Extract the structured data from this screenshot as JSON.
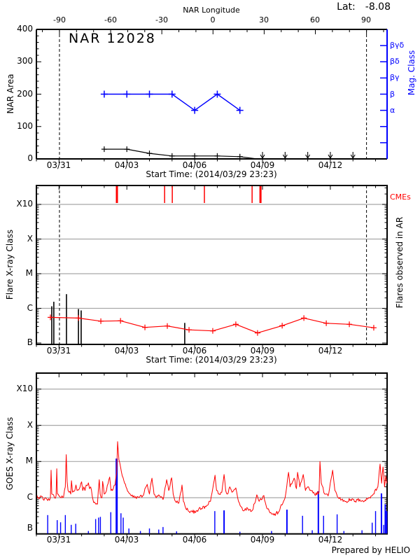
{
  "figure": {
    "title": "NAR 12028",
    "latitude_label": "Lat:",
    "latitude_value": "-8.08",
    "credit": "Prepared by HELIO"
  },
  "colors": {
    "data_red": "#ff0000",
    "data_blue": "#0000ff",
    "data_black": "#000000",
    "gridline_gray": "#a8a8a8",
    "background": "#ffffff"
  },
  "time_axis": {
    "title": "Start Time: (2014/03/29 23:23)",
    "tick_labels": [
      "03/31",
      "04/03",
      "04/06",
      "04/09",
      "04/12"
    ],
    "tick_days": [
      1,
      4,
      7,
      10,
      13
    ],
    "minor_step_days": 1,
    "day_min": 0,
    "day_max": 15.51
  },
  "longitude_axis": {
    "title": "NAR Longitude",
    "tick_labels": [
      "-90",
      "-60",
      "-30",
      "0",
      "30",
      "60",
      "90"
    ],
    "tick_values": [
      -90,
      -60,
      -30,
      0,
      30,
      60,
      90
    ],
    "minor_step_deg": 10,
    "west_limb_day": 1.02,
    "east_limb_day": 14.6,
    "deg_span": 180
  },
  "chart_data": [
    {
      "type": "line",
      "name": "nar-area-and-mag-class",
      "title": "NAR 12028",
      "ylabel": "NAR Area",
      "ylim": [
        0,
        400
      ],
      "ytick_labels": [
        "0",
        "100",
        "200",
        "300",
        "400"
      ],
      "yticks": [
        0,
        100,
        200,
        300,
        400
      ],
      "y_minor_step": 20,
      "y2label": "Mag. Class",
      "y2_tick_areas": [
        50,
        100,
        150,
        200,
        250,
        300,
        350
      ],
      "y2_labeled": [
        {
          "area": 350,
          "label": "βγδ"
        },
        {
          "area": 300,
          "label": "βδ"
        },
        {
          "area": 250,
          "label": "βγ"
        },
        {
          "area": 200,
          "label": "β"
        },
        {
          "area": 150,
          "label": "α"
        }
      ],
      "area_series": {
        "color": "black",
        "marker": "+",
        "days": [
          3,
          4,
          5,
          6,
          7,
          8,
          9
        ],
        "values": [
          30,
          30,
          17,
          9,
          9,
          9,
          7
        ],
        "tail": [
          [
            9,
            7
          ],
          [
            9.75,
            0
          ]
        ]
      },
      "mag_series": {
        "color": "blue",
        "marker": "+",
        "days": [
          3,
          4,
          5,
          6,
          7,
          8,
          9
        ],
        "classes": [
          "β",
          "β",
          "β",
          "β",
          "α",
          "β",
          "α"
        ],
        "area_equiv": [
          200,
          200,
          200,
          200,
          150,
          200,
          150
        ]
      },
      "zero_upper_limit_arrow_days": [
        10,
        11,
        12,
        13,
        14
      ],
      "limb_lines_days": [
        1.02,
        14.6
      ]
    },
    {
      "type": "line",
      "name": "flares-observed-in-ar",
      "ylabel": "Flare X-ray Class",
      "right_label": "Flares observed in AR",
      "cme_label": "CMEs",
      "decade_labels": [
        "B",
        "C",
        "M",
        "X",
        "X10"
      ],
      "level_unit": "decades above B (1e-7 W/m^2)",
      "gray_lines_levels": [
        1,
        2,
        3,
        4
      ],
      "flare_line": {
        "color": "red",
        "marker": "+",
        "days": [
          0.62,
          1.86,
          2.85,
          3.72,
          4.8,
          5.79,
          6.75,
          7.8,
          8.82,
          9.78,
          10.87,
          11.83,
          12.82,
          13.84,
          14.92
        ],
        "levels": [
          0.74,
          0.72,
          0.63,
          0.64,
          0.45,
          0.49,
          0.38,
          0.35,
          0.54,
          0.29,
          0.5,
          0.72,
          0.57,
          0.54,
          0.44
        ]
      },
      "black_flare_spikes": [
        [
          0.68,
          1.06
        ],
        [
          0.77,
          1.19
        ],
        [
          1.33,
          1.41
        ],
        [
          1.86,
          0.98
        ],
        [
          1.98,
          0.94
        ],
        [
          6.56,
          0.58
        ]
      ],
      "cme_ticks": [
        [
          3.56,
          3
        ],
        [
          5.67,
          1.5
        ],
        [
          6.01,
          1.5
        ],
        [
          7.43,
          1.5
        ],
        [
          9.54,
          1.5
        ],
        [
          9.91,
          3
        ]
      ],
      "limb_lines_days": [
        1.02,
        14.6
      ]
    },
    {
      "type": "line",
      "name": "goes-xray-flux",
      "ylabel": "GOES X-ray Class",
      "decade_labels": [
        "B",
        "C",
        "M",
        "X",
        "X10"
      ],
      "level_unit": "decades above B (1e-7 W/m^2)",
      "gray_lines_levels": [
        1,
        2,
        3,
        4
      ],
      "noise_amplitude": 0.05,
      "goes_red": [
        [
          0.03,
          1.06
        ],
        [
          0.1,
          1.0
        ],
        [
          0.2,
          1.05
        ],
        [
          0.3,
          0.95
        ],
        [
          0.4,
          1.0
        ],
        [
          0.5,
          0.92
        ],
        [
          0.62,
          1.0
        ],
        [
          0.65,
          1.76
        ],
        [
          0.68,
          1.1
        ],
        [
          0.8,
          1.0
        ],
        [
          0.87,
          1.05
        ],
        [
          0.9,
          1.8
        ],
        [
          0.93,
          1.1
        ],
        [
          1.0,
          1.05
        ],
        [
          1.1,
          1.0
        ],
        [
          1.2,
          1.02
        ],
        [
          1.28,
          1.3
        ],
        [
          1.32,
          2.19
        ],
        [
          1.36,
          1.45
        ],
        [
          1.4,
          1.2
        ],
        [
          1.45,
          1.15
        ],
        [
          1.52,
          1.1
        ],
        [
          1.55,
          1.47
        ],
        [
          1.6,
          1.15
        ],
        [
          1.7,
          1.2
        ],
        [
          1.75,
          1.35
        ],
        [
          1.8,
          1.2
        ],
        [
          1.9,
          1.25
        ],
        [
          2.0,
          1.44
        ],
        [
          2.05,
          1.2
        ],
        [
          2.1,
          1.3
        ],
        [
          2.15,
          1.2
        ],
        [
          2.2,
          1.35
        ],
        [
          2.3,
          1.41
        ],
        [
          2.35,
          1.25
        ],
        [
          2.4,
          1.3
        ],
        [
          2.5,
          0.95
        ],
        [
          2.6,
          0.85
        ],
        [
          2.7,
          0.82
        ],
        [
          2.78,
          1.5
        ],
        [
          2.82,
          1.1
        ],
        [
          2.9,
          1.0
        ],
        [
          2.93,
          1.45
        ],
        [
          3.0,
          1.1
        ],
        [
          3.1,
          1.2
        ],
        [
          3.24,
          1.57
        ],
        [
          3.3,
          1.2
        ],
        [
          3.4,
          1.25
        ],
        [
          3.48,
          1.35
        ],
        [
          3.55,
          1.7
        ],
        [
          3.59,
          2.55
        ],
        [
          3.65,
          2.05
        ],
        [
          3.72,
          1.85
        ],
        [
          3.8,
          1.6
        ],
        [
          3.9,
          1.4
        ],
        [
          4.0,
          1.25
        ],
        [
          4.1,
          1.12
        ],
        [
          4.2,
          1.05
        ],
        [
          4.35,
          1.0
        ],
        [
          4.5,
          1.02
        ],
        [
          4.7,
          1.05
        ],
        [
          4.9,
          1.37
        ],
        [
          5.0,
          1.1
        ],
        [
          5.11,
          1.54
        ],
        [
          5.2,
          1.1
        ],
        [
          5.3,
          1.0
        ],
        [
          5.45,
          1.05
        ],
        [
          5.6,
          0.95
        ],
        [
          5.76,
          1.5
        ],
        [
          5.85,
          1.2
        ],
        [
          5.98,
          1.55
        ],
        [
          6.05,
          1.1
        ],
        [
          6.15,
          0.9
        ],
        [
          6.3,
          0.85
        ],
        [
          6.44,
          1.35
        ],
        [
          6.5,
          0.9
        ],
        [
          6.6,
          0.72
        ],
        [
          6.75,
          0.62
        ],
        [
          6.9,
          0.6
        ],
        [
          7.1,
          0.65
        ],
        [
          7.3,
          0.7
        ],
        [
          7.5,
          0.75
        ],
        [
          7.7,
          0.9
        ],
        [
          7.9,
          1.62
        ],
        [
          7.97,
          1.2
        ],
        [
          8.05,
          1.1
        ],
        [
          8.2,
          1.15
        ],
        [
          8.3,
          1.64
        ],
        [
          8.37,
          1.2
        ],
        [
          8.45,
          1.1
        ],
        [
          8.55,
          1.3
        ],
        [
          8.65,
          1.15
        ],
        [
          8.82,
          1.27
        ],
        [
          8.9,
          1.0
        ],
        [
          9.05,
          0.75
        ],
        [
          9.2,
          0.65
        ],
        [
          9.35,
          0.7
        ],
        [
          9.55,
          0.65
        ],
        [
          9.75,
          1.08
        ],
        [
          9.85,
          0.9
        ],
        [
          10.06,
          1.06
        ],
        [
          10.15,
          0.8
        ],
        [
          10.3,
          0.62
        ],
        [
          10.5,
          0.52
        ],
        [
          10.7,
          0.6
        ],
        [
          10.9,
          0.85
        ],
        [
          11.0,
          1.0
        ],
        [
          11.15,
          1.7
        ],
        [
          11.22,
          1.3
        ],
        [
          11.4,
          1.54
        ],
        [
          11.5,
          1.25
        ],
        [
          11.55,
          1.7
        ],
        [
          11.65,
          1.3
        ],
        [
          11.8,
          1.64
        ],
        [
          11.9,
          1.2
        ],
        [
          12.0,
          1.3
        ],
        [
          12.1,
          1.2
        ],
        [
          12.3,
          1.1
        ],
        [
          12.5,
          1.15
        ],
        [
          12.54,
          2.0
        ],
        [
          12.6,
          1.4
        ],
        [
          12.75,
          1.1
        ],
        [
          12.9,
          1.05
        ],
        [
          13.1,
          1.76
        ],
        [
          13.2,
          1.2
        ],
        [
          13.35,
          1.0
        ],
        [
          13.5,
          0.95
        ],
        [
          13.7,
          0.9
        ],
        [
          13.9,
          0.95
        ],
        [
          14.1,
          0.9
        ],
        [
          14.3,
          0.95
        ],
        [
          14.5,
          0.9
        ],
        [
          14.7,
          1.0
        ],
        [
          14.9,
          1.1
        ],
        [
          15.1,
          1.3
        ],
        [
          15.2,
          1.93
        ],
        [
          15.27,
          1.4
        ],
        [
          15.33,
          1.85
        ],
        [
          15.4,
          1.3
        ],
        [
          15.45,
          1.6
        ],
        [
          15.5,
          1.4
        ]
      ],
      "blue_spikes": [
        [
          0.5,
          0.52
        ],
        [
          0.92,
          0.38
        ],
        [
          1.07,
          0.32
        ],
        [
          1.28,
          0.52
        ],
        [
          1.54,
          0.25
        ],
        [
          1.74,
          0.28
        ],
        [
          2.3,
          0.08
        ],
        [
          2.62,
          0.41
        ],
        [
          2.75,
          0.45
        ],
        [
          2.83,
          0.47
        ],
        [
          3.29,
          0.6
        ],
        [
          3.55,
          2.08,
          3
        ],
        [
          3.74,
          0.57
        ],
        [
          3.84,
          0.45
        ],
        [
          4.09,
          0.15
        ],
        [
          4.6,
          0.08
        ],
        [
          5.0,
          0.15
        ],
        [
          5.41,
          0.12
        ],
        [
          5.6,
          0.19
        ],
        [
          6.2,
          0.07
        ],
        [
          7.89,
          0.63
        ],
        [
          8.3,
          0.65,
          2
        ],
        [
          9.0,
          0.06
        ],
        [
          10.4,
          0.08
        ],
        [
          11.08,
          0.67,
          2
        ],
        [
          11.77,
          0.5
        ],
        [
          12.2,
          0.1
        ],
        [
          12.47,
          1.18,
          2
        ],
        [
          12.7,
          0.5
        ],
        [
          13.3,
          0.54
        ],
        [
          13.6,
          0.08
        ],
        [
          14.4,
          0.1
        ],
        [
          14.85,
          0.31
        ],
        [
          15.0,
          0.63
        ],
        [
          15.26,
          1.12,
          2
        ],
        [
          15.36,
          0.25
        ],
        [
          15.43,
          0.82,
          2
        ],
        [
          15.49,
          0.63,
          2
        ]
      ]
    }
  ]
}
